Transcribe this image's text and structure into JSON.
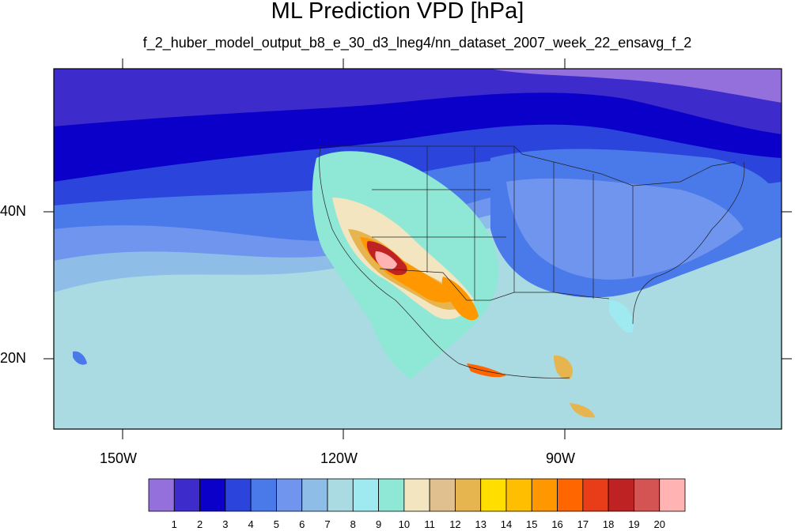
{
  "title": "ML Prediction VPD [hPa]",
  "subtitle": "f_2_huber_model_output_b8_e_30_d3_lneg4/nn_dataset_2007_week_22_ensavg_f_2",
  "axes": {
    "lat_labels": [
      "40N",
      "20N"
    ],
    "lon_labels": [
      "150W",
      "120W",
      "90W"
    ]
  },
  "colorbar": {
    "labels": [
      "1",
      "2",
      "3",
      "4",
      "5",
      "6",
      "7",
      "8",
      "9",
      "10",
      "11",
      "12",
      "13",
      "14",
      "15",
      "16",
      "17",
      "18",
      "19",
      "20"
    ],
    "colors": [
      "#9370db",
      "#3d2bcc",
      "#0b00c9",
      "#2b45dc",
      "#4a79ea",
      "#6f95ee",
      "#8ebde8",
      "#aadbe3",
      "#9eeaf0",
      "#8fe8d6",
      "#f3e5bf",
      "#e0c08e",
      "#e6b550",
      "#ffde00",
      "#ffbf00",
      "#ff9700",
      "#ff6600",
      "#e93c18",
      "#bf2222",
      "#d45454",
      "#ffb3b3"
    ]
  },
  "colors": {
    "ocean_far": "#aadbe3",
    "ocean_mid": "#8ebde8",
    "north_low": "#0b00c9",
    "arctic": "#9370db",
    "hot": "#ff6600",
    "hottest": "#ffb3b3"
  }
}
